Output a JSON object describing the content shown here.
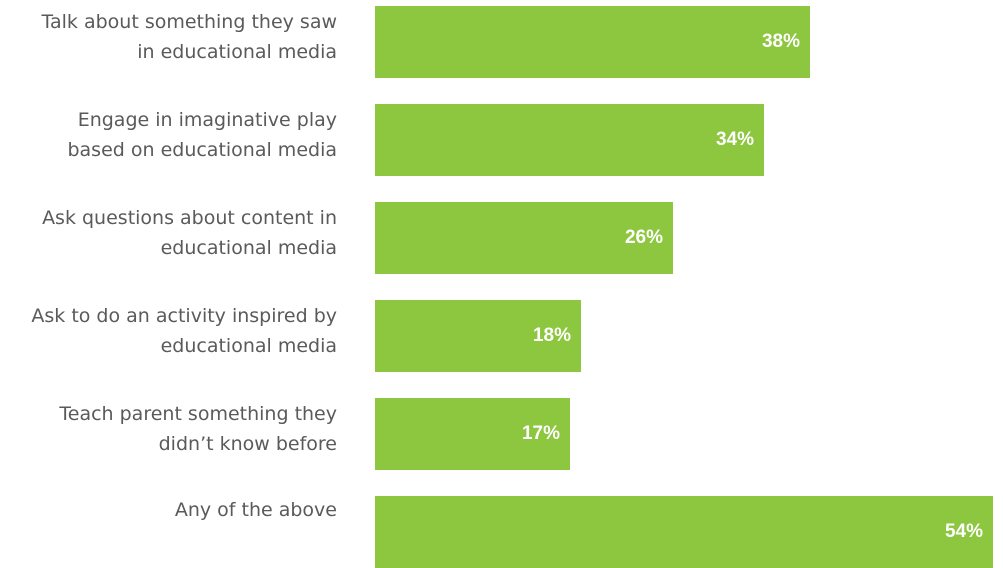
{
  "chart_data": {
    "type": "bar",
    "orientation": "horizontal",
    "categories": [
      [
        "Talk about something they saw",
        "in educational media"
      ],
      [
        "Engage in imaginative play",
        "based on educational media"
      ],
      [
        "Ask questions about content in",
        "educational media"
      ],
      [
        "Ask to do an activity inspired by",
        "educational media"
      ],
      [
        "Teach parent something they",
        "didn’t know before"
      ],
      [
        "Any of the above"
      ]
    ],
    "values": [
      38,
      34,
      26,
      18,
      17,
      54
    ],
    "value_labels": [
      "38%",
      "34%",
      "26%",
      "18%",
      "17%",
      "54%"
    ],
    "title": "",
    "xlabel": "",
    "ylabel": "",
    "xlim": [
      0,
      54
    ],
    "grid": false,
    "bar_color": "#8dc63f",
    "label_color": "#5a5a5a",
    "value_label_color": "#ffffff"
  }
}
